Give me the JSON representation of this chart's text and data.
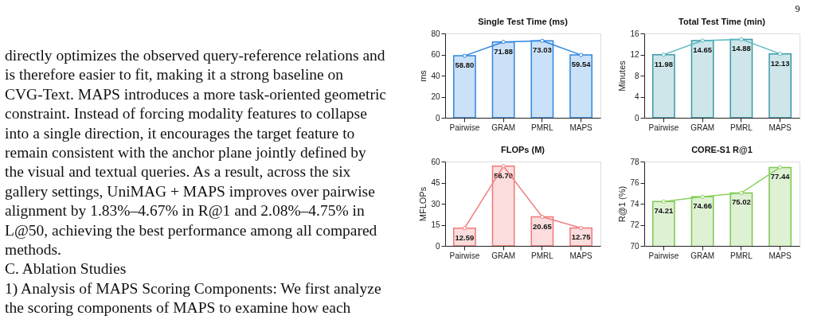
{
  "chart_data": [
    {
      "type": "other",
      "annotations": [
        "directly optimizes the observed query-reference relations and",
        "is therefore easier to fit, making it a strong baseline on",
        "CVG-Text. MAPS introduces a more task-oriented geometric",
        "constraint. Instead of forcing modality features to collapse",
        "into a single direction, it encourages the target feature to",
        "remain consistent with the anchor plane jointly defined by",
        "the visual and textual queries. As a result, across the six",
        "gallery settings, UniMAG + MAPS improves over pairwise",
        "alignment by 1.83%–4.67% in R@1 and 2.08%–4.75% in",
        "L@50, achieving the best performance among all compared",
        "methods.",
        "C. Ablation Studies",
        "1) Analysis of MAPS Scoring Components: We first analyze",
        "the scoring components of MAPS to examine how each",
        "9"
      ]
    },
    {
      "type": "bar",
      "title": "Single Test Time (ms)",
      "ylabel": "ms",
      "categories": [
        "Pairwise",
        "GRAM",
        "PMRL",
        "MAPS"
      ],
      "ylim": [
        0,
        80
      ],
      "yticks": [
        0,
        20,
        40,
        60,
        80
      ],
      "marker": "circle",
      "series": [
        {
          "type": "bar",
          "color": "#2f86e0",
          "values": [
            58.8,
            71.88,
            73.03,
            59.54
          ],
          "value_labels": [
            "58.80",
            "71.88",
            "73.03",
            "59.54"
          ]
        },
        {
          "type": "line",
          "color": "#2f86e0",
          "values": [
            58.8,
            71.88,
            73.03,
            59.54
          ]
        }
      ]
    },
    {
      "type": "bar",
      "title": "Total Test Time (min)",
      "ylabel": "Minutes",
      "categories": [
        "Pairwise",
        "GRAM",
        "PMRL",
        "MAPS"
      ],
      "ylim": [
        0,
        16
      ],
      "yticks": [
        0,
        4,
        8,
        12,
        16
      ],
      "marker": "circle",
      "series": [
        {
          "type": "bar",
          "color": "#3a9aa8",
          "values": [
            11.98,
            14.65,
            14.88,
            12.13
          ],
          "value_labels": [
            "11.98",
            "14.65",
            "14.88",
            "12.13"
          ]
        },
        {
          "type": "line",
          "color": "#5ab8c0",
          "values": [
            11.98,
            14.65,
            14.88,
            12.13
          ]
        }
      ]
    },
    {
      "type": "bar",
      "title": "FLOPs (M)",
      "ylabel": "MFLOPs",
      "categories": [
        "Pairwise",
        "GRAM",
        "PMRL",
        "MAPS"
      ],
      "ylim": [
        0,
        60
      ],
      "yticks": [
        0,
        15,
        30,
        45,
        60
      ],
      "marker": "circle",
      "series": [
        {
          "type": "bar",
          "color": "#f07878",
          "values": [
            12.59,
            56.7,
            20.65,
            12.75
          ],
          "value_labels": [
            "12.59",
            "56.70",
            "20.65",
            "12.75"
          ]
        },
        {
          "type": "line",
          "color": "#f08080",
          "values": [
            12.59,
            56.7,
            20.65,
            12.75
          ]
        }
      ]
    },
    {
      "type": "bar",
      "title": "CORE-S1 R@1",
      "ylabel": "R@1 (%)",
      "categories": [
        "Pairwise",
        "GRAM",
        "PMRL",
        "MAPS"
      ],
      "ylim": [
        70,
        78
      ],
      "yticks": [
        70,
        72,
        74,
        76,
        78
      ],
      "marker": "circle",
      "series": [
        {
          "type": "bar",
          "color": "#7cc850",
          "values": [
            74.21,
            74.66,
            75.02,
            77.44
          ],
          "value_labels": [
            "74.21",
            "74.66",
            "75.02",
            "77.44"
          ]
        },
        {
          "type": "line",
          "color": "#8cd060",
          "values": [
            74.21,
            74.66,
            75.02,
            77.44
          ]
        }
      ]
    }
  ]
}
